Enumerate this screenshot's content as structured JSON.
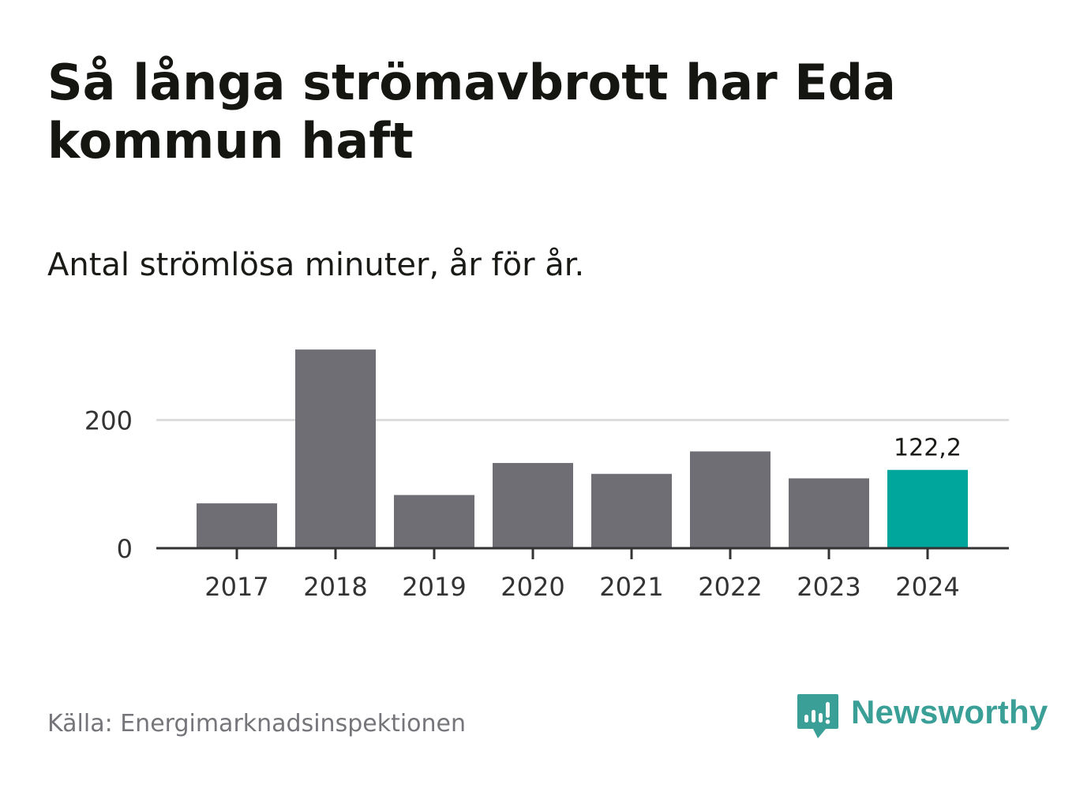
{
  "header": {
    "title": "Så långa strömavbrott har Eda kommun haft",
    "subtitle": "Antal strömlösa minuter, år för år."
  },
  "footer": {
    "source": "Källa: Energimarknadsinspektionen",
    "brand": "Newsworthy",
    "brand_icon": "newsworthy-logo-icon"
  },
  "colors": {
    "bar": "#6f6e74",
    "highlight": "#00a59b",
    "gridline": "#dddddd",
    "axis": "#333333",
    "brand": "#3a9f97"
  },
  "chart_data": {
    "type": "bar",
    "title": "Så långa strömavbrott har Eda kommun haft",
    "subtitle": "Antal strömlösa minuter, år för år.",
    "categories": [
      "2017",
      "2018",
      "2019",
      "2020",
      "2021",
      "2022",
      "2023",
      "2024"
    ],
    "values": [
      70,
      310,
      83,
      133,
      116,
      151,
      109,
      122.2
    ],
    "highlight_index": 7,
    "data_labels": [
      {
        "index": 7,
        "text": "122,2"
      }
    ],
    "yticks": [
      0,
      200
    ],
    "ytick_labels": [
      "0",
      "200"
    ],
    "ylim": [
      0,
      320
    ],
    "xlabel": "",
    "ylabel": "",
    "grid": true
  }
}
